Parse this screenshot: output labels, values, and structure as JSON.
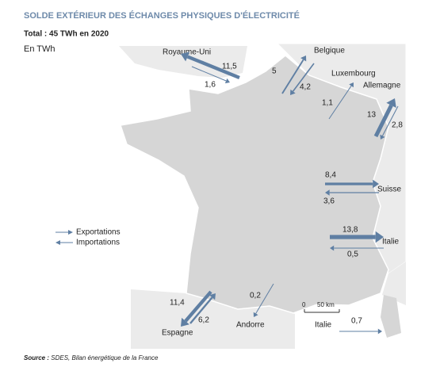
{
  "header": {
    "title": "SOLDE EXTÉRIEUR DES ÉCHANGES PHYSIQUES D'ÉLECTRICITÉ",
    "subtitle": "Total : 45 TWh en 2020",
    "unit": "En TWh"
  },
  "legend": {
    "exports": "Exportations",
    "imports": "Importations"
  },
  "countries": [
    {
      "name": "Royaume-Uni",
      "flows": [
        {
          "value": 11.5,
          "label": "11,5"
        },
        {
          "value": 1.6,
          "label": "1,6"
        }
      ]
    },
    {
      "name": "Belgique",
      "flows": [
        {
          "value": 5,
          "label": "5"
        },
        {
          "value": 4.2,
          "label": "4,2"
        }
      ]
    },
    {
      "name": "Luxembourg",
      "flows": [
        {
          "value": 1.1,
          "label": "1,1"
        }
      ]
    },
    {
      "name": "Allemagne",
      "flows": [
        {
          "value": 13,
          "label": "13"
        },
        {
          "value": 2.8,
          "label": "2,8"
        }
      ]
    },
    {
      "name": "Suisse",
      "flows": [
        {
          "value": 8.4,
          "label": "8,4"
        },
        {
          "value": 3.6,
          "label": "3,6"
        }
      ]
    },
    {
      "name": "Italie",
      "flows": [
        {
          "value": 13.8,
          "label": "13,8"
        },
        {
          "value": 0.5,
          "label": "0,5"
        }
      ]
    },
    {
      "name": "Espagne",
      "flows": [
        {
          "value": 11.4,
          "label": "11,4"
        },
        {
          "value": 6.2,
          "label": "6,2"
        }
      ]
    },
    {
      "name": "Andorre",
      "flows": [
        {
          "value": 0.2,
          "label": "0,2"
        }
      ]
    },
    {
      "name": "Italie",
      "flows": [
        {
          "value": 0.7,
          "label": "0,7"
        }
      ]
    }
  ],
  "scale": {
    "zero": "0",
    "distance": "50 km"
  },
  "source": {
    "prefix": "Source :",
    "text": "SDES, Bilan énergétique de la France"
  }
}
